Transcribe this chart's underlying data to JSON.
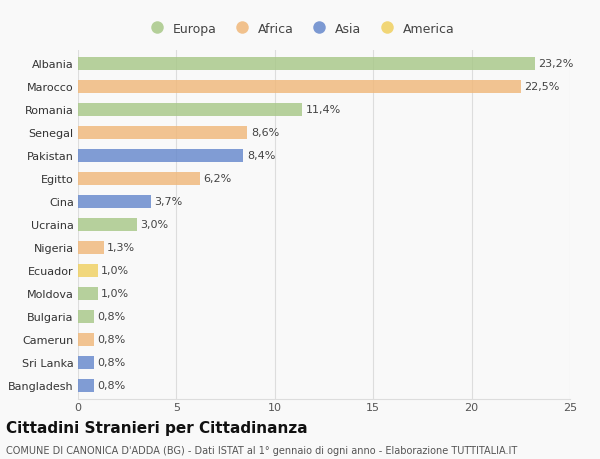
{
  "title": "Cittadini Stranieri per Cittadinanza",
  "subtitle": "COMUNE DI CANONICA D'ADDA (BG) - Dati ISTAT al 1° gennaio di ogni anno - Elaborazione TUTTITALIA.IT",
  "countries": [
    "Albania",
    "Marocco",
    "Romania",
    "Senegal",
    "Pakistan",
    "Egitto",
    "Cina",
    "Ucraina",
    "Nigeria",
    "Ecuador",
    "Moldova",
    "Bulgaria",
    "Camerun",
    "Sri Lanka",
    "Bangladesh"
  ],
  "values": [
    23.2,
    22.5,
    11.4,
    8.6,
    8.4,
    6.2,
    3.7,
    3.0,
    1.3,
    1.0,
    1.0,
    0.8,
    0.8,
    0.8,
    0.8
  ],
  "labels": [
    "23,2%",
    "22,5%",
    "11,4%",
    "8,6%",
    "8,4%",
    "6,2%",
    "3,7%",
    "3,0%",
    "1,3%",
    "1,0%",
    "1,0%",
    "0,8%",
    "0,8%",
    "0,8%",
    "0,8%"
  ],
  "continents": [
    "Europa",
    "Africa",
    "Europa",
    "Africa",
    "Asia",
    "Africa",
    "Asia",
    "Europa",
    "Africa",
    "America",
    "Europa",
    "Europa",
    "Africa",
    "Asia",
    "Asia"
  ],
  "continent_colors": {
    "Europa": "#a8c888",
    "Africa": "#f0b87a",
    "Asia": "#6688cc",
    "America": "#f0d060"
  },
  "legend_order": [
    "Europa",
    "Africa",
    "Asia",
    "America"
  ],
  "xlim": [
    0,
    25
  ],
  "xticks": [
    0,
    5,
    10,
    15,
    20,
    25
  ],
  "bg_color": "#f9f9f9",
  "grid_color": "#dddddd",
  "bar_height": 0.55,
  "label_fontsize": 8,
  "tick_fontsize": 8,
  "title_fontsize": 11,
  "subtitle_fontsize": 7
}
